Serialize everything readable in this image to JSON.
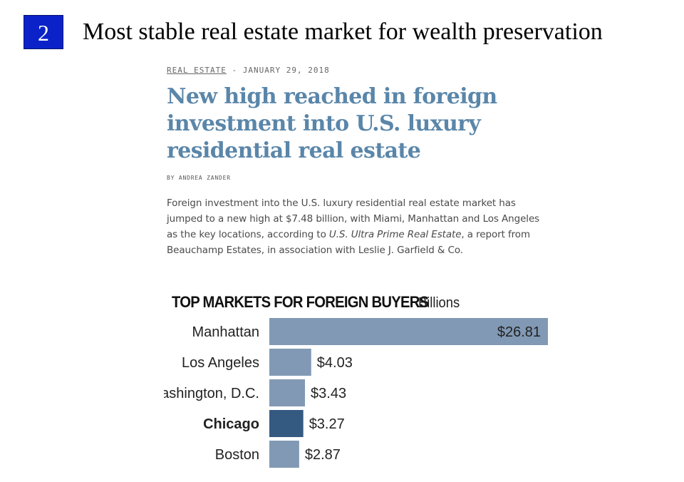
{
  "slide": {
    "number": "2",
    "title": "Most stable real estate market for wealth preservation"
  },
  "article": {
    "section": "REAL ESTATE",
    "date": " - JANUARY 29, 2018",
    "headline": "New high reached in foreign investment into U.S. luxury residential real estate",
    "byline": "BY ANDREA ZANDER",
    "body_part1": "Foreign investment into the U.S. luxury residential real estate market has jumped to a new high at $7.48 billion, with Miami, Manhattan and Los Angeles as the key locations, according to ",
    "body_report": "U.S. Ultra Prime Real Estate",
    "body_part2": ", a report from Beauchamp Estates, in association with Leslie J. Garfield & Co."
  },
  "chart_data": {
    "type": "bar",
    "orientation": "horizontal",
    "title": "TOP MARKETS FOR FOREIGN BUYERS",
    "unit": "Billions",
    "categories": [
      "Manhattan",
      "Los Angeles",
      "Washington, D.C.",
      "Chicago",
      "Boston"
    ],
    "values": [
      26.81,
      4.03,
      3.43,
      3.27,
      2.87
    ],
    "value_labels": [
      "$26.81",
      "$4.03",
      "$3.43",
      "$3.27",
      "$2.87"
    ],
    "highlight": "Chicago",
    "colors": {
      "bar": "#8199b4",
      "highlight": "#355a82",
      "text": "#222222"
    }
  }
}
